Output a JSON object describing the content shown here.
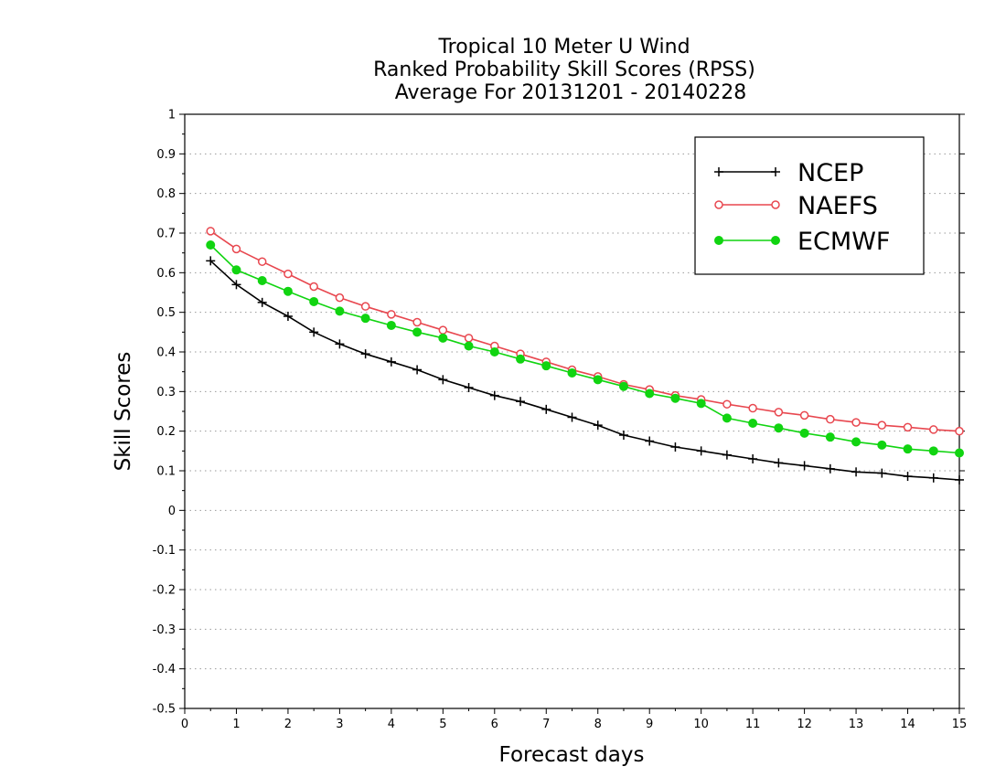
{
  "chart_data": {
    "type": "line",
    "title_lines": [
      "Tropical 10 Meter U Wind",
      "Ranked Probability Skill Scores (RPSS)",
      "Average For 20131201 - 20140228"
    ],
    "xlabel": "Forecast days",
    "ylabel": "Skill Scores",
    "xlim": [
      0,
      15
    ],
    "ylim": [
      -0.5,
      1
    ],
    "x_ticks": [
      "0",
      "1",
      "2",
      "3",
      "4",
      "5",
      "6",
      "7",
      "8",
      "9",
      "10",
      "11",
      "12",
      "13",
      "14",
      "15"
    ],
    "y_ticks": [
      "1",
      "0.9",
      "0.8",
      "0.7",
      "0.6",
      "0.5",
      "0.4",
      "0.3",
      "0.2",
      "0.1",
      "0",
      "-0.1",
      "-0.2",
      "-0.3",
      "-0.4",
      "-0.5"
    ],
    "grid": "horizontal dotted",
    "legend_position": "top-right",
    "x": [
      0.5,
      1,
      1.5,
      2,
      2.5,
      3,
      3.5,
      4,
      4.5,
      5,
      5.5,
      6,
      6.5,
      7,
      7.5,
      8,
      8.5,
      9,
      9.5,
      10,
      10.5,
      11,
      11.5,
      12,
      12.5,
      13,
      13.5,
      14,
      14.5,
      15
    ],
    "series": [
      {
        "name": "NCEP",
        "color": "#000000",
        "marker": "plus",
        "values": [
          0.63,
          0.57,
          0.525,
          0.49,
          0.45,
          0.42,
          0.395,
          0.375,
          0.355,
          0.33,
          0.31,
          0.29,
          0.275,
          0.255,
          0.235,
          0.215,
          0.19,
          0.175,
          0.16,
          0.15,
          0.14,
          0.13,
          0.12,
          0.113,
          0.105,
          0.097,
          0.094,
          0.086,
          0.082,
          0.077
        ]
      },
      {
        "name": "NAEFS",
        "color": "#e8474f",
        "marker": "open-circle",
        "values": [
          0.705,
          0.66,
          0.628,
          0.597,
          0.565,
          0.537,
          0.515,
          0.495,
          0.475,
          0.455,
          0.435,
          0.415,
          0.395,
          0.375,
          0.355,
          0.338,
          0.318,
          0.305,
          0.29,
          0.28,
          0.268,
          0.258,
          0.248,
          0.24,
          0.23,
          0.222,
          0.215,
          0.21,
          0.204,
          0.2
        ]
      },
      {
        "name": "ECMWF",
        "color": "#11d411",
        "marker": "filled-circle",
        "values": [
          0.67,
          0.607,
          0.58,
          0.553,
          0.527,
          0.503,
          0.485,
          0.467,
          0.45,
          0.435,
          0.415,
          0.4,
          0.382,
          0.365,
          0.347,
          0.33,
          0.313,
          0.295,
          0.283,
          0.27,
          0.233,
          0.22,
          0.208,
          0.195,
          0.185,
          0.173,
          0.165,
          0.155,
          0.15,
          0.145
        ]
      }
    ]
  }
}
